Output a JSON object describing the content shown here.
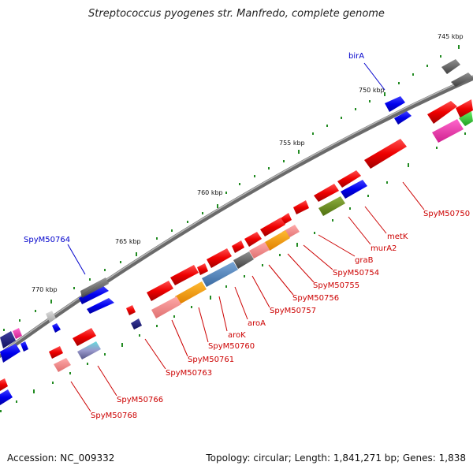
{
  "title": "Streptococcus pyogenes str. Manfredo, complete genome",
  "footer": {
    "accession": "Accession: NC_009332",
    "summary": "Topology: circular; Length: 1,841,271 bp; Genes: 1,838"
  },
  "ticks": [
    "745 kbp",
    "750 kbp",
    "755 kbp",
    "760 kbp",
    "765 kbp",
    "770 kbp"
  ],
  "gene_labels": [
    {
      "text": "birA",
      "color": "#0000cc"
    },
    {
      "text": "SpyM50764",
      "color": "#0000cc"
    },
    {
      "text": "SpyM50750",
      "color": "#cc0000"
    },
    {
      "text": "metK",
      "color": "#cc0000"
    },
    {
      "text": "murA2",
      "color": "#cc0000"
    },
    {
      "text": "graB",
      "color": "#cc0000"
    },
    {
      "text": "SpyM50754",
      "color": "#cc0000"
    },
    {
      "text": "SpyM50755",
      "color": "#cc0000"
    },
    {
      "text": "SpyM50756",
      "color": "#cc0000"
    },
    {
      "text": "SpyM50757",
      "color": "#cc0000"
    },
    {
      "text": "aroA",
      "color": "#cc0000"
    },
    {
      "text": "aroK",
      "color": "#cc0000"
    },
    {
      "text": "SpyM50760",
      "color": "#cc0000"
    },
    {
      "text": "SpyM50761",
      "color": "#cc0000"
    },
    {
      "text": "SpyM50763",
      "color": "#cc0000"
    },
    {
      "text": "SpyM50766",
      "color": "#cc0000"
    },
    {
      "text": "SpyM50768",
      "color": "#cc0000"
    }
  ],
  "colors": {
    "backbone": "#808080",
    "forward_cds": "#e00000",
    "reverse_cds": "#0000e0",
    "tick_mark": "#228b22"
  }
}
